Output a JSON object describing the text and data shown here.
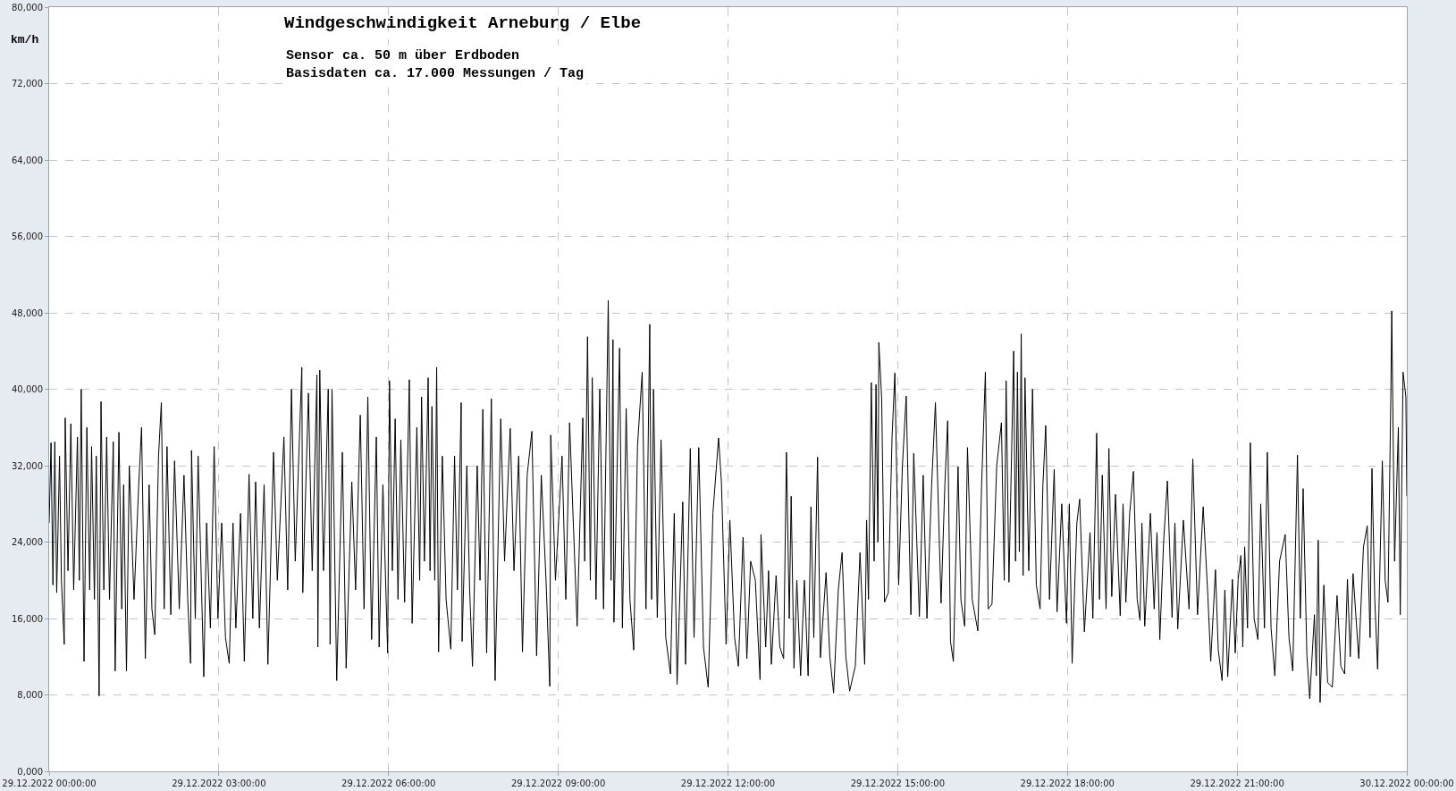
{
  "chart_data": {
    "type": "line",
    "title": "Windgeschwindigkeit Arneburg / Elbe",
    "subtitle": "Sensor ca. 50 m über Erdboden\nBasisdaten ca. 17.000 Messungen / Tag",
    "ylabel": "km/h",
    "xlim": [
      "2022-12-29T00:00",
      "2022-12-30T00:00"
    ],
    "xticks": [
      {
        "value": "2022-12-29T00:00",
        "label": "29.12.2022 00:00:00"
      },
      {
        "value": "2022-12-29T03:00",
        "label": "29.12.2022 03:00:00"
      },
      {
        "value": "2022-12-29T06:00",
        "label": "29.12.2022 06:00:00"
      },
      {
        "value": "2022-12-29T09:00",
        "label": "29.12.2022 09:00:00"
      },
      {
        "value": "2022-12-29T12:00",
        "label": "29.12.2022 12:00:00"
      },
      {
        "value": "2022-12-29T15:00",
        "label": "29.12.2022 15:00:00"
      },
      {
        "value": "2022-12-29T18:00",
        "label": "29.12.2022 18:00:00"
      },
      {
        "value": "2022-12-29T21:00",
        "label": "29.12.2022 21:00:00"
      },
      {
        "value": "2022-12-30T00:00",
        "label": "30.12.2022 00:00:00"
      }
    ],
    "ylim": [
      0,
      80000
    ],
    "yticks": [
      {
        "value": 0,
        "label": "0,000"
      },
      {
        "value": 8000,
        "label": "8,000"
      },
      {
        "value": 16000,
        "label": "16,000"
      },
      {
        "value": 24000,
        "label": "24,000"
      },
      {
        "value": 32000,
        "label": "32,000"
      },
      {
        "value": 40000,
        "label": "40,000"
      },
      {
        "value": 48000,
        "label": "48,000"
      },
      {
        "value": 56000,
        "label": "56,000"
      },
      {
        "value": 64000,
        "label": "64,000"
      },
      {
        "value": 72000,
        "label": "72,000"
      },
      {
        "value": 80000,
        "label": "80,000"
      }
    ],
    "grid": true,
    "line_style": "solid",
    "series": [
      {
        "color": "#000000",
        "x": [
          "2022-12-29T00:00",
          "2022-12-29T00:02",
          "2022-12-29T00:04",
          "2022-12-29T00:06",
          "2022-12-29T00:08",
          "2022-12-29T00:11",
          "2022-12-29T00:13",
          "2022-12-29T00:16",
          "2022-12-29T00:17",
          "2022-12-29T00:20",
          "2022-12-29T00:23",
          "2022-12-29T00:26",
          "2022-12-29T00:30",
          "2022-12-29T00:32",
          "2022-12-29T00:34",
          "2022-12-29T00:37",
          "2022-12-29T00:40",
          "2022-12-29T00:43",
          "2022-12-29T00:45",
          "2022-12-29T00:48",
          "2022-12-29T00:50",
          "2022-12-29T00:53",
          "2022-12-29T00:55",
          "2022-12-29T00:58",
          "2022-12-29T01:01",
          "2022-12-29T01:04",
          "2022-12-29T01:08",
          "2022-12-29T01:10",
          "2022-12-29T01:14",
          "2022-12-29T01:17",
          "2022-12-29T01:19",
          "2022-12-29T01:22",
          "2022-12-29T01:25",
          "2022-12-29T01:30",
          "2022-12-29T01:35",
          "2022-12-29T01:38",
          "2022-12-29T01:42",
          "2022-12-29T01:46",
          "2022-12-29T01:49",
          "2022-12-29T01:52",
          "2022-12-29T01:56",
          "2022-12-29T01:59",
          "2022-12-29T02:02",
          "2022-12-29T02:05",
          "2022-12-29T02:09",
          "2022-12-29T02:13",
          "2022-12-29T02:18",
          "2022-12-29T02:23",
          "2022-12-29T02:27",
          "2022-12-29T02:30",
          "2022-12-29T02:31",
          "2022-12-29T02:35",
          "2022-12-29T02:38",
          "2022-12-29T02:44",
          "2022-12-29T02:47",
          "2022-12-29T02:51",
          "2022-12-29T02:55",
          "2022-12-29T02:59",
          "2022-12-29T03:03",
          "2022-12-29T03:07",
          "2022-12-29T03:11",
          "2022-12-29T03:15",
          "2022-12-29T03:18",
          "2022-12-29T03:23",
          "2022-12-29T03:27",
          "2022-12-29T03:32",
          "2022-12-29T03:36",
          "2022-12-29T03:39",
          "2022-12-29T03:43",
          "2022-12-29T03:48",
          "2022-12-29T03:52",
          "2022-12-29T03:58",
          "2022-12-29T04:02",
          "2022-12-29T04:09",
          "2022-12-29T04:13",
          "2022-12-29T04:17",
          "2022-12-29T04:21",
          "2022-12-29T04:28",
          "2022-12-29T04:29",
          "2022-12-29T04:35",
          "2022-12-29T04:39",
          "2022-12-29T04:44",
          "2022-12-29T04:45",
          "2022-12-29T04:47",
          "2022-12-29T04:51",
          "2022-12-29T04:56",
          "2022-12-29T04:58",
          "2022-12-29T05:00",
          "2022-12-29T05:05",
          "2022-12-29T05:11",
          "2022-12-29T05:15",
          "2022-12-29T05:21",
          "2022-12-29T05:25",
          "2022-12-29T05:30",
          "2022-12-29T05:34",
          "2022-12-29T05:38",
          "2022-12-29T05:42",
          "2022-12-29T05:47",
          "2022-12-29T05:50",
          "2022-12-29T05:54",
          "2022-12-29T05:59",
          "2022-12-29T06:01",
          "2022-12-29T06:04",
          "2022-12-29T06:07",
          "2022-12-29T06:10",
          "2022-12-29T06:13",
          "2022-12-29T06:17",
          "2022-12-29T06:22",
          "2022-12-29T06:25",
          "2022-12-29T06:30",
          "2022-12-29T06:33",
          "2022-12-29T06:35",
          "2022-12-29T06:38",
          "2022-12-29T06:42",
          "2022-12-29T06:44",
          "2022-12-29T06:46",
          "2022-12-29T06:49",
          "2022-12-29T06:51",
          "2022-12-29T06:53",
          "2022-12-29T06:57",
          "2022-12-29T07:01",
          "2022-12-29T07:06",
          "2022-12-29T07:10",
          "2022-12-29T07:13",
          "2022-12-29T07:17",
          "2022-12-29T07:18",
          "2022-12-29T07:23",
          "2022-12-29T07:26",
          "2022-12-29T07:29",
          "2022-12-29T07:34",
          "2022-12-29T07:37",
          "2022-12-29T07:40",
          "2022-12-29T07:44",
          "2022-12-29T07:49",
          "2022-12-29T07:53",
          "2022-12-29T07:59",
          "2022-12-29T08:03",
          "2022-12-29T08:09",
          "2022-12-29T08:13",
          "2022-12-29T08:18",
          "2022-12-29T08:22",
          "2022-12-29T08:27",
          "2022-12-29T08:32",
          "2022-12-29T08:37",
          "2022-12-29T08:42",
          "2022-12-29T08:47",
          "2022-12-29T08:51",
          "2022-12-29T08:52",
          "2022-12-29T08:57",
          "2022-12-29T09:04",
          "2022-12-29T09:08",
          "2022-12-29T09:12",
          "2022-12-29T09:20",
          "2022-12-29T09:26",
          "2022-12-29T09:28",
          "2022-12-29T09:31",
          "2022-12-29T09:34",
          "2022-12-29T09:36",
          "2022-12-29T09:40",
          "2022-12-29T09:44",
          "2022-12-29T09:48",
          "2022-12-29T09:53",
          "2022-12-29T09:56",
          "2022-12-29T09:58",
          "2022-12-29T09:59",
          "2022-12-29T10:05",
          "2022-12-29T10:08",
          "2022-12-29T10:12",
          "2022-12-29T10:16",
          "2022-12-29T10:20",
          "2022-12-29T10:24",
          "2022-12-29T10:29",
          "2022-12-29T10:33",
          "2022-12-29T10:37",
          "2022-12-29T10:39",
          "2022-12-29T10:41",
          "2022-12-29T10:45",
          "2022-12-29T10:49",
          "2022-12-29T10:54",
          "2022-12-29T10:59",
          "2022-12-29T11:03",
          "2022-12-29T11:06",
          "2022-12-29T11:12",
          "2022-12-29T11:15",
          "2022-12-29T11:20",
          "2022-12-29T11:24",
          "2022-12-29T11:29",
          "2022-12-29T11:34",
          "2022-12-29T11:39",
          "2022-12-29T11:44",
          "2022-12-29T11:50",
          "2022-12-29T11:53",
          "2022-12-29T11:58",
          "2022-12-29T12:02",
          "2022-12-29T12:07",
          "2022-12-29T12:11",
          "2022-12-29T12:16",
          "2022-12-29T12:20",
          "2022-12-29T12:24",
          "2022-12-29T12:29",
          "2022-12-29T12:34",
          "2022-12-29T12:35",
          "2022-12-29T12:40",
          "2022-12-29T12:43",
          "2022-12-29T12:46",
          "2022-12-29T12:51",
          "2022-12-29T12:55",
          "2022-12-29T12:59",
          "2022-12-29T13:02",
          "2022-12-29T13:05",
          "2022-12-29T13:07",
          "2022-12-29T13:10",
          "2022-12-29T13:13",
          "2022-12-29T13:17",
          "2022-12-29T13:21",
          "2022-12-29T13:25",
          "2022-12-29T13:28",
          "2022-12-29T13:31",
          "2022-12-29T13:35",
          "2022-12-29T13:38",
          "2022-12-29T13:44",
          "2022-12-29T13:48",
          "2022-12-29T13:52",
          "2022-12-29T13:57",
          "2022-12-29T14:01",
          "2022-12-29T14:05",
          "2022-12-29T14:09",
          "2022-12-29T14:15",
          "2022-12-29T14:20",
          "2022-12-29T14:25",
          "2022-12-29T14:27",
          "2022-12-29T14:29",
          "2022-12-29T14:32",
          "2022-12-29T14:35",
          "2022-12-29T14:37",
          "2022-12-29T14:39",
          "2022-12-29T14:40",
          "2022-12-29T14:43",
          "2022-12-29T14:46",
          "2022-12-29T14:50",
          "2022-12-29T14:54",
          "2022-12-29T14:57",
          "2022-12-29T15:01",
          "2022-12-29T15:05",
          "2022-12-29T15:09",
          "2022-12-29T15:14",
          "2022-12-29T15:17",
          "2022-12-29T15:23",
          "2022-12-29T15:27",
          "2022-12-29T15:31",
          "2022-12-29T15:36",
          "2022-12-29T15:40",
          "2022-12-29T15:46",
          "2022-12-29T15:50",
          "2022-12-29T15:53",
          "2022-12-29T15:56",
          "2022-12-29T15:59",
          "2022-12-29T16:04",
          "2022-12-29T16:07",
          "2022-12-29T16:11",
          "2022-12-29T16:14",
          "2022-12-29T16:19",
          "2022-12-29T16:25",
          "2022-12-29T16:29",
          "2022-12-29T16:33",
          "2022-12-29T16:36",
          "2022-12-29T16:40",
          "2022-12-29T16:45",
          "2022-12-29T16:50",
          "2022-12-29T16:53",
          "2022-12-29T16:55",
          "2022-12-29T16:58",
          "2022-12-29T17:03",
          "2022-12-29T17:05",
          "2022-12-29T17:07",
          "2022-12-29T17:09",
          "2022-12-29T17:11",
          "2022-12-29T17:13",
          "2022-12-29T17:15",
          "2022-12-29T17:19",
          "2022-12-29T17:23",
          "2022-12-29T17:27",
          "2022-12-29T17:31",
          "2022-12-29T17:34",
          "2022-12-29T17:37",
          "2022-12-29T17:41",
          "2022-12-29T17:46",
          "2022-12-29T17:49",
          "2022-12-29T17:54",
          "2022-12-29T17:59",
          "2022-12-29T18:02",
          "2022-12-29T18:05",
          "2022-12-29T18:10",
          "2022-12-29T18:13",
          "2022-12-29T18:18",
          "2022-12-29T18:24",
          "2022-12-29T18:27",
          "2022-12-29T18:31",
          "2022-12-29T18:34",
          "2022-12-29T18:37",
          "2022-12-29T18:41",
          "2022-12-29T18:44",
          "2022-12-29T18:47",
          "2022-12-29T18:51",
          "2022-12-29T18:56",
          "2022-12-29T18:59",
          "2022-12-29T19:02",
          "2022-12-29T19:06",
          "2022-12-29T19:10",
          "2022-12-29T19:14",
          "2022-12-29T19:17",
          "2022-12-29T19:19",
          "2022-12-29T19:22",
          "2022-12-29T19:28",
          "2022-12-29T19:32",
          "2022-12-29T19:35",
          "2022-12-29T19:38",
          "2022-12-29T19:42",
          "2022-12-29T19:46",
          "2022-12-29T19:51",
          "2022-12-29T19:54",
          "2022-12-29T19:57",
          "2022-12-29T20:03",
          "2022-12-29T20:09",
          "2022-12-29T20:13",
          "2022-12-29T20:18",
          "2022-12-29T20:24",
          "2022-12-29T20:29",
          "2022-12-29T20:32",
          "2022-12-29T20:37",
          "2022-12-29T20:40",
          "2022-12-29T20:44",
          "2022-12-29T20:47",
          "2022-12-29T20:50",
          "2022-12-29T20:55",
          "2022-12-29T20:58",
          "2022-12-29T21:01",
          "2022-12-29T21:04",
          "2022-12-29T21:06",
          "2022-12-29T21:08",
          "2022-12-29T21:11",
          "2022-12-29T21:14",
          "2022-12-29T21:18",
          "2022-12-29T21:22",
          "2022-12-29T21:25",
          "2022-12-29T21:29",
          "2022-12-29T21:32",
          "2022-12-29T21:36",
          "2022-12-29T21:40",
          "2022-12-29T21:45",
          "2022-12-29T21:51",
          "2022-12-29T21:55",
          "2022-12-29T21:59",
          "2022-12-29T22:04",
          "2022-12-29T22:07",
          "2022-12-29T22:10",
          "2022-12-29T22:14",
          "2022-12-29T22:17",
          "2022-12-29T22:22",
          "2022-12-29T22:24",
          "2022-12-29T22:26",
          "2022-12-29T22:28",
          "2022-12-29T22:32",
          "2022-12-29T22:36",
          "2022-12-29T22:41",
          "2022-12-29T22:46",
          "2022-12-29T22:50",
          "2022-12-29T22:54",
          "2022-12-29T22:57",
          "2022-12-29T23:00",
          "2022-12-29T23:03",
          "2022-12-29T23:09",
          "2022-12-29T23:14",
          "2022-12-29T23:18",
          "2022-12-29T23:21",
          "2022-12-29T23:23",
          "2022-12-29T23:26",
          "2022-12-29T23:29",
          "2022-12-29T23:34",
          "2022-12-29T23:37",
          "2022-12-29T23:40",
          "2022-12-29T23:43",
          "2022-12-29T23:44",
          "2022-12-29T23:47",
          "2022-12-29T23:51",
          "2022-12-29T23:53",
          "2022-12-29T23:56",
          "2022-12-29T23:59",
          "2022-12-30T00:00"
        ],
        "values": [
          26000,
          34400,
          19500,
          34500,
          18700,
          33000,
          20000,
          13300,
          37000,
          21000,
          36400,
          19000,
          35000,
          20000,
          40000,
          11500,
          36000,
          19000,
          34000,
          18000,
          33000,
          7900,
          38700,
          19000,
          35000,
          18000,
          34500,
          10500,
          35500,
          17000,
          30000,
          10500,
          32000,
          18000,
          30000,
          36000,
          11800,
          30000,
          17000,
          14300,
          33000,
          38600,
          17000,
          34000,
          16400,
          32500,
          17000,
          31000,
          18000,
          11300,
          33600,
          16000,
          33000,
          9900,
          26000,
          15000,
          34000,
          16000,
          26000,
          14000,
          11300,
          26000,
          15000,
          27000,
          11500,
          31100,
          16000,
          30300,
          15000,
          30000,
          11200,
          33400,
          20000,
          35000,
          19000,
          40000,
          22000,
          42300,
          18700,
          39600,
          21000,
          41500,
          13000,
          42000,
          21000,
          40000,
          13300,
          40000,
          9500,
          33400,
          10800,
          30300,
          19000,
          37300,
          17000,
          39200,
          13800,
          35000,
          13000,
          30000,
          12400,
          40900,
          21000,
          36900,
          18000,
          34700,
          17700,
          41000,
          15500,
          36000,
          20000,
          39200,
          22000,
          41200,
          21000,
          38200,
          20000,
          42300,
          12500,
          33000,
          18000,
          12800,
          33000,
          19000,
          38600,
          13600,
          32000,
          19000,
          11000,
          32000,
          20000,
          37900,
          12400,
          39000,
          9500,
          36900,
          22000,
          35900,
          21000,
          33000,
          12500,
          31000,
          35600,
          12100,
          31000,
          20000,
          8900,
          35200,
          20000,
          33000,
          18000,
          36500,
          15200,
          37000,
          22000,
          45500,
          20000,
          41200,
          18000,
          40000,
          17000,
          49300,
          20000,
          45200,
          15600,
          44300,
          15000,
          38000,
          18000,
          12700,
          34000,
          41800,
          17000,
          46800,
          18000,
          40000,
          16100,
          34700,
          14000,
          10200,
          27000,
          9100,
          28200,
          11200,
          33800,
          14000,
          33900,
          13000,
          8800,
          27000,
          34900,
          30300,
          13300,
          26300,
          14000,
          11000,
          24500,
          11800,
          22000,
          20000,
          9600,
          24800,
          13000,
          21000,
          11200,
          20500,
          13000,
          11800,
          33400,
          16000,
          28800,
          10800,
          20000,
          10000,
          20000,
          10000,
          27700,
          14000,
          32900,
          11900,
          20800,
          12000,
          8200,
          19000,
          22900,
          12000,
          8400,
          11000,
          22900,
          11200,
          26300,
          18000,
          40700,
          22000,
          40500,
          24000,
          44900,
          39000,
          17700,
          18700,
          35000,
          41700,
          19500,
          32000,
          39300,
          16400,
          33300,
          16200,
          31000,
          16000,
          30000,
          38600,
          17600,
          30000,
          36700,
          13600,
          11500,
          31900,
          18000,
          15200,
          33900,
          18000,
          14700,
          30000,
          41800,
          17000,
          17500,
          32000,
          36500,
          20000,
          40900,
          19800,
          44000,
          22000,
          41800,
          23000,
          45800,
          20500,
          41200,
          21000,
          40000,
          19500,
          17000,
          30000,
          36200,
          18000,
          31600,
          16700,
          28000,
          15500,
          28000,
          11300,
          26000,
          28500,
          14600,
          25000,
          16000,
          35400,
          18000,
          31000,
          17000,
          33800,
          18300,
          29000,
          16300,
          28000,
          17700,
          27000,
          31400,
          18000,
          15800,
          26000,
          15200,
          27000,
          17000,
          25000,
          13800,
          24000,
          30400,
          16100,
          26000,
          14900,
          26300,
          17000,
          32700,
          16400,
          27700,
          18300,
          11500,
          21100,
          12700,
          9500,
          19000,
          9900,
          20100,
          12400,
          20000,
          22600,
          13000,
          23500,
          15000,
          34400,
          16000,
          13800,
          28000,
          15000,
          33400,
          15000,
          10000,
          22000,
          24800,
          14000,
          10500,
          33100,
          16000,
          29600,
          12100,
          7600,
          16400,
          10000,
          24200,
          7200,
          19500,
          9300,
          8800,
          18400,
          11000,
          10200,
          20100,
          12000,
          20700,
          11800,
          23500,
          25700,
          14000,
          31700,
          18000,
          10700,
          32500,
          20000,
          17700,
          39200,
          48200,
          22000,
          36000,
          16400,
          41800,
          39200,
          28800
        ]
      }
    ]
  }
}
